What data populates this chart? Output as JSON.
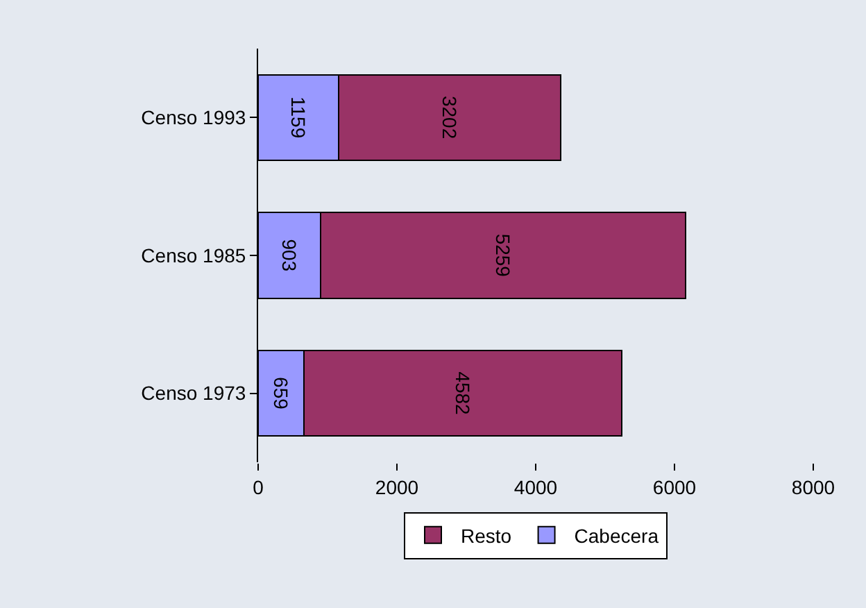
{
  "chart_data": {
    "type": "bar",
    "orientation": "horizontal",
    "stacked": true,
    "categories": [
      "Censo 1993",
      "Censo 1985",
      "Censo 1973"
    ],
    "series": [
      {
        "name": "Cabecera",
        "color": "#9999ff",
        "values": [
          1159,
          903,
          659
        ]
      },
      {
        "name": "Resto",
        "color": "#993366",
        "values": [
          3202,
          5259,
          4582
        ]
      }
    ],
    "xlim": [
      0,
      8000
    ],
    "xticks": [
      0,
      2000,
      4000,
      6000,
      8000
    ],
    "data_labels": true,
    "legend": "bottom",
    "grid": false
  }
}
